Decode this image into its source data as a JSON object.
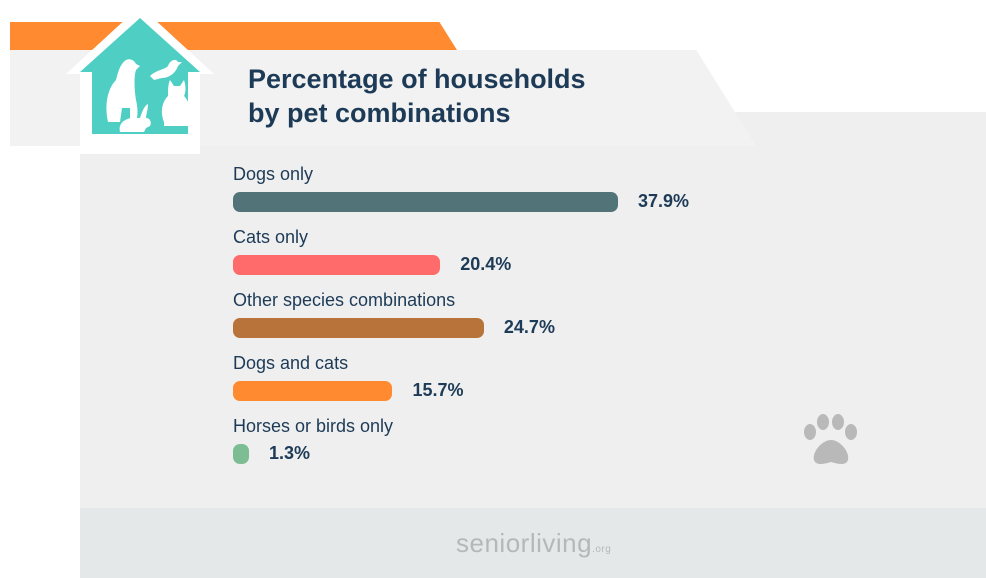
{
  "header": {
    "title_line1": "Percentage of households",
    "title_line2": "by pet combinations"
  },
  "chart_data": {
    "type": "bar",
    "orientation": "horizontal",
    "title": "Percentage of households by pet combinations",
    "categories": [
      "Dogs only",
      "Cats only",
      "Other species combinations",
      "Dogs and cats",
      "Horses or birds only"
    ],
    "values": [
      37.9,
      20.4,
      24.7,
      15.7,
      1.3
    ],
    "value_labels": [
      "37.9%",
      "20.4%",
      "24.7%",
      "15.7%",
      "1.3%"
    ],
    "colors": [
      "#527479",
      "#ff6b6b",
      "#b8733a",
      "#ff8a30",
      "#7dbd94"
    ],
    "unit": "%",
    "xlim": [
      0,
      37.9
    ],
    "grid": false,
    "legend": "none"
  },
  "brand": {
    "logo_main": "seniorliving",
    "logo_suffix": ".org"
  },
  "icons": {
    "house": "pets-house-icon",
    "paw": "paw-print-icon"
  },
  "colors": {
    "title": "#1d3b57",
    "banner_accent": "#ff8a30",
    "house": "#4fcfc4",
    "paw": "#b9b9b9"
  }
}
